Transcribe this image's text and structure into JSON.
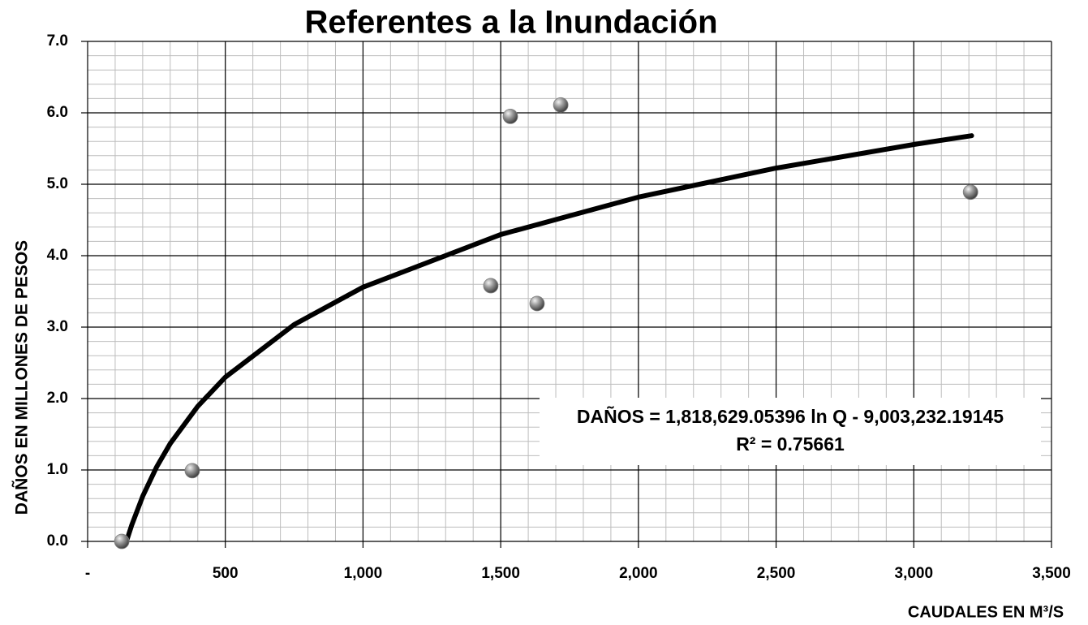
{
  "chart_data": {
    "type": "scatter",
    "title": "Referentes a la Inundación",
    "x_label": "CAUDALES EN M³/S",
    "y_label": "DAÑOS EN MILLONES DE PESOS",
    "annotations": [
      "DAÑOS = 1,818,629.05396 ln Q - 9,003,232.19145",
      "R² = 0.75661"
    ],
    "x": [
      124,
      380,
      1464,
      1535,
      1632,
      1718,
      3206
    ],
    "values": [
      0.0,
      0.99,
      3.58,
      5.95,
      3.33,
      6.11,
      4.89
    ],
    "color": "#808080",
    "trendline": {
      "color": "#000000",
      "x": [
        141,
        160,
        200,
        250,
        300,
        400,
        500,
        750,
        1000,
        1500,
        2000,
        2500,
        3000,
        3210
      ],
      "values": [
        0.0,
        0.227,
        0.632,
        1.038,
        1.37,
        1.892,
        2.299,
        3.036,
        3.559,
        4.296,
        4.82,
        5.226,
        5.557,
        5.68
      ]
    },
    "xlim": [
      0,
      3500
    ],
    "ylim": [
      0,
      7
    ],
    "xticks": [
      {
        "value": 0,
        "label": "-"
      },
      500,
      {
        "value": 1000,
        "label": "1,000"
      },
      {
        "value": 1500,
        "label": "1,500"
      },
      {
        "value": 2000,
        "label": "2,000"
      },
      {
        "value": 2500,
        "label": "2,500"
      },
      {
        "value": 3000,
        "label": "3,000"
      },
      {
        "value": 3500,
        "label": "3,500"
      }
    ],
    "yticks": [
      {
        "value": 0,
        "label": "0.0"
      },
      {
        "value": 1,
        "label": "1.0"
      },
      {
        "value": 2,
        "label": "2.0"
      },
      {
        "value": 3,
        "label": "3.0"
      },
      {
        "value": 4,
        "label": "4.0"
      },
      {
        "value": 5,
        "label": "5.0"
      },
      {
        "value": 6,
        "label": "6.0"
      },
      {
        "value": 7,
        "label": "7.0"
      }
    ],
    "grid": true,
    "minor_grid": {
      "x": 100,
      "y": 0.2
    }
  }
}
